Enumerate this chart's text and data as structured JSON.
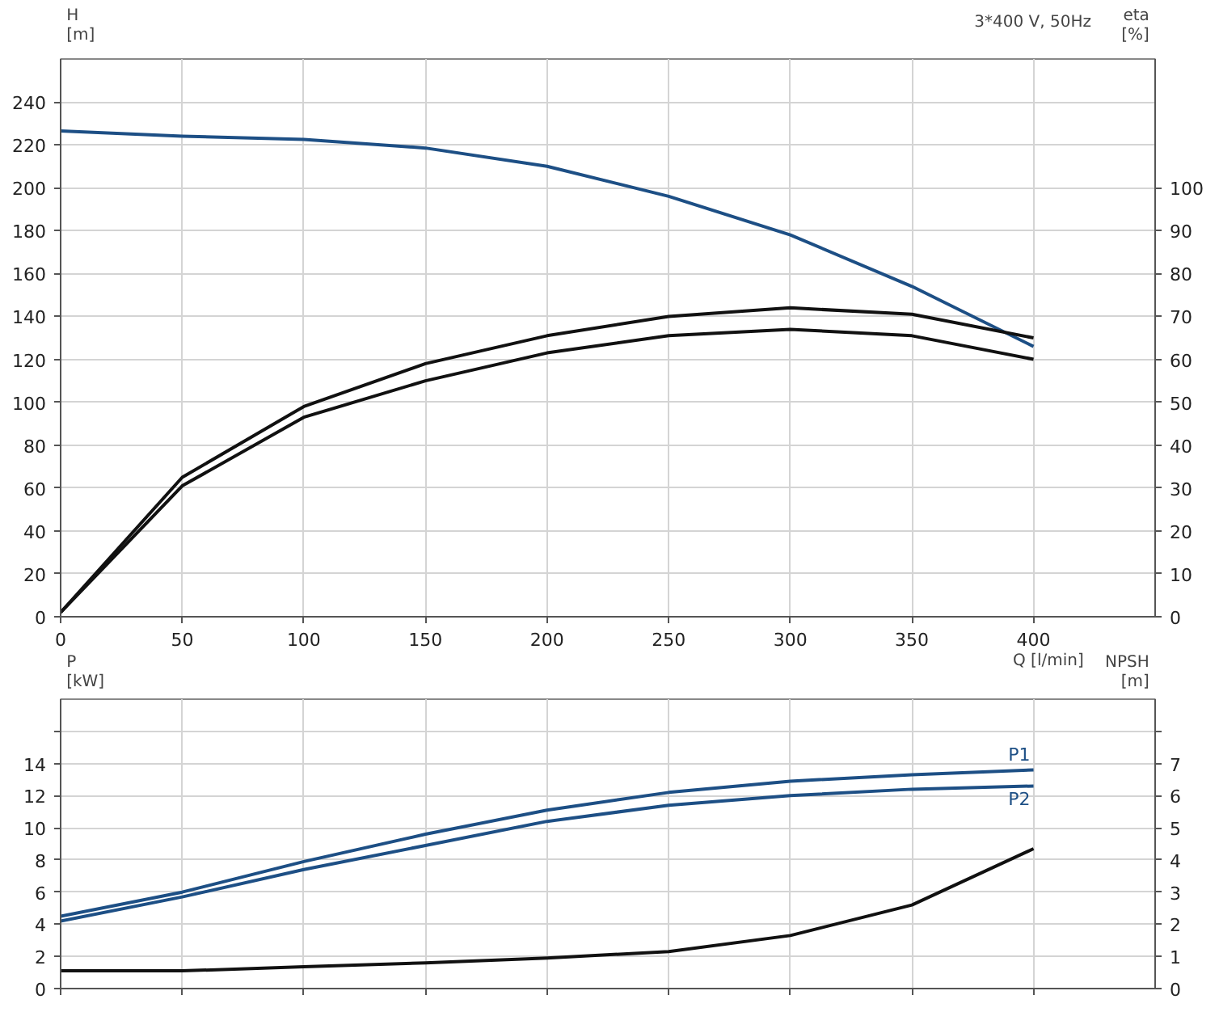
{
  "chart_data": [
    {
      "type": "line",
      "title": "3*400 V, 50Hz",
      "xlabel": "Q [l/min]",
      "ylabel": "H [m]",
      "y2label": "eta [%]",
      "x": [
        0,
        50,
        100,
        150,
        200,
        250,
        300,
        350,
        400
      ],
      "xlim": [
        0,
        450
      ],
      "xticks": [
        0,
        50,
        100,
        150,
        200,
        250,
        300,
        350,
        400
      ],
      "ylim": [
        0,
        260
      ],
      "yticks": [
        0,
        20,
        40,
        60,
        80,
        100,
        120,
        140,
        160,
        180,
        200,
        220,
        240
      ],
      "y2lim": [
        0,
        130
      ],
      "y2ticks": [
        0,
        10,
        20,
        30,
        40,
        50,
        60,
        70,
        80,
        90,
        100
      ],
      "grid": true,
      "series": [
        {
          "color": "#1d4f85",
          "values": [
            226.5,
            224,
            222.5,
            218.5,
            210,
            196,
            178,
            154,
            126
          ]
        },
        {
          "color": "#111111",
          "axis": "y2",
          "values": [
            1,
            32.5,
            49,
            59,
            65.5,
            70,
            72,
            70.5,
            65
          ]
        },
        {
          "color": "#111111",
          "axis": "y2",
          "values": [
            1,
            30.5,
            46.5,
            55,
            61.5,
            65.5,
            67,
            65.5,
            60
          ]
        }
      ]
    },
    {
      "type": "line",
      "ylabel": "P [kW]",
      "y2label": "NPSH [m]",
      "x": [
        0,
        50,
        100,
        150,
        200,
        250,
        300,
        350,
        400
      ],
      "xlim": [
        0,
        450
      ],
      "xticks": [
        0,
        50,
        100,
        150,
        200,
        250,
        300,
        350,
        400
      ],
      "ylim": [
        0,
        18
      ],
      "yticks": [
        0,
        2,
        4,
        6,
        8,
        10,
        12,
        14,
        {
          "value": 16,
          "label": null
        }
      ],
      "y2lim": [
        0,
        9
      ],
      "y2ticks": [
        0,
        1,
        2,
        3,
        4,
        5,
        6,
        7,
        {
          "value": 8,
          "label": null
        }
      ],
      "grid": true,
      "tick_labels": "y",
      "series": [
        {
          "name": "P1",
          "color": "#1d4f85",
          "values": [
            4.5,
            6,
            7.9,
            9.6,
            11.1,
            12.2,
            12.9,
            13.3,
            13.6
          ]
        },
        {
          "name": "P2",
          "color": "#1d4f85",
          "values": [
            4.2,
            5.7,
            7.4,
            8.9,
            10.4,
            11.4,
            12.0,
            12.4,
            12.6
          ]
        },
        {
          "color": "#111111",
          "axis": "y2",
          "values": [
            0.55,
            0.55,
            0.68,
            0.8,
            0.95,
            1.15,
            1.65,
            2.6,
            4.35
          ]
        }
      ]
    }
  ]
}
